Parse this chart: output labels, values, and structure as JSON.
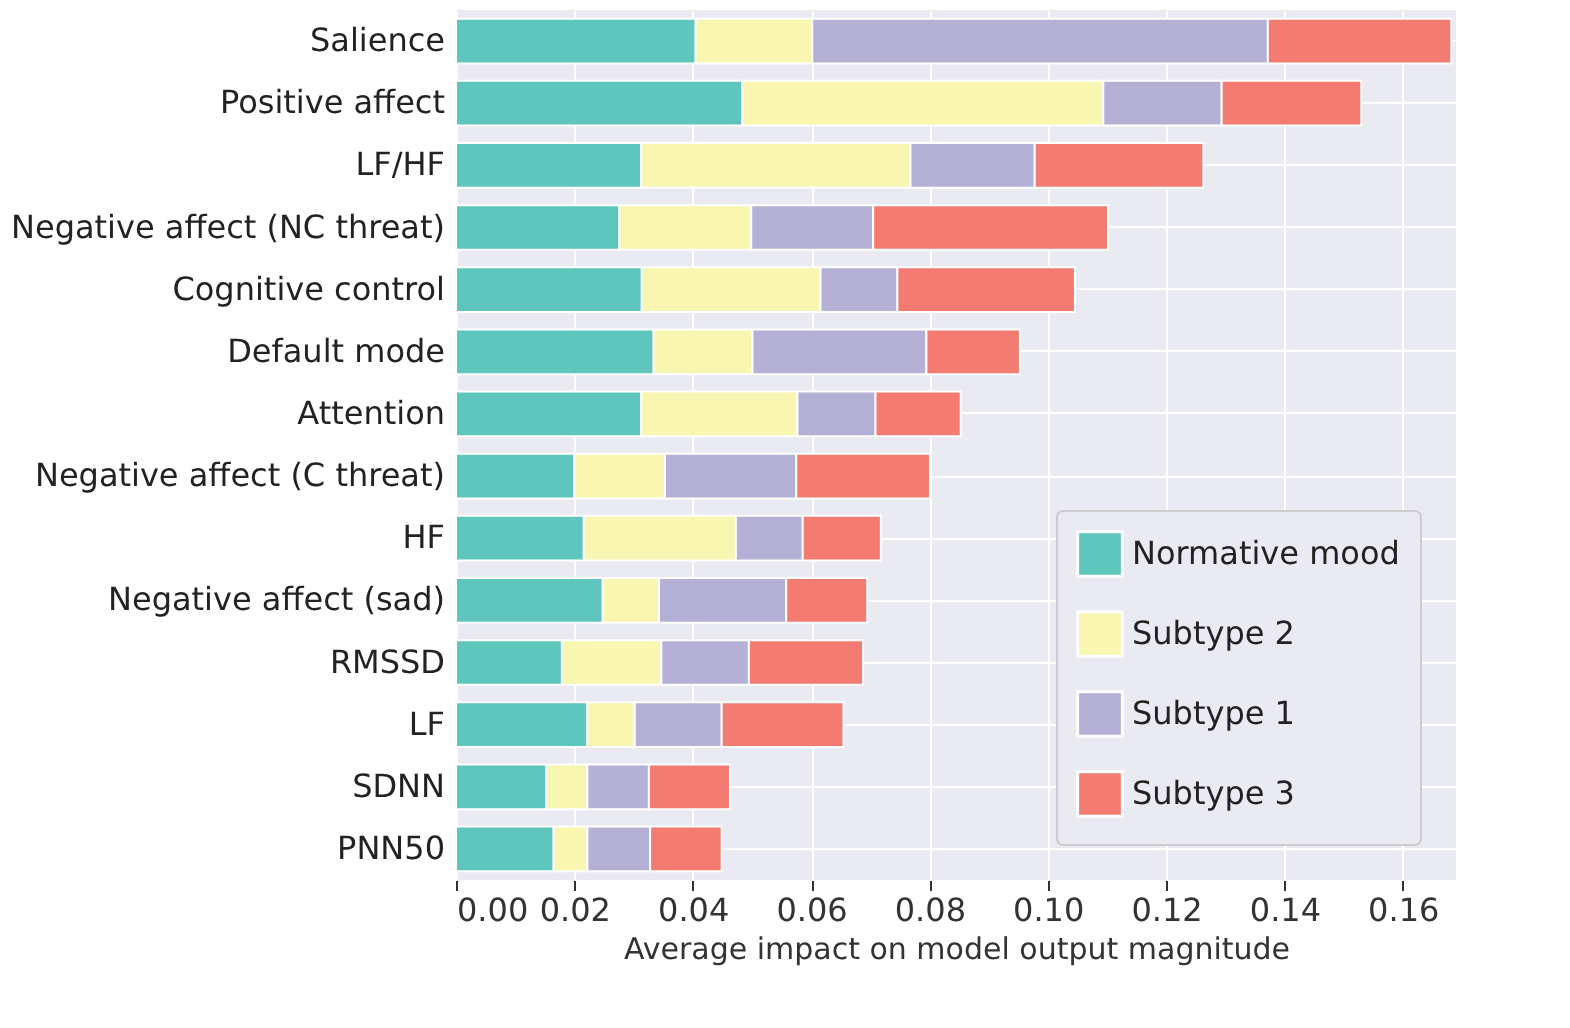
{
  "chart_data": {
    "type": "bar",
    "orientation": "horizontal",
    "stacked": true,
    "xlabel": "Average impact on model output magnitude",
    "categories": [
      "Salience",
      "Positive affect",
      "LF/HF",
      "Negative affect (NC threat)",
      "Cognitive control",
      "Default mode",
      "Attention",
      "Negative affect (C threat)",
      "HF",
      "Negative affect (sad)",
      "RMSSD",
      "LF",
      "SDNN",
      "PNN50"
    ],
    "series": [
      {
        "name": "Normative mood",
        "color": "#5fc6bd",
        "values": [
          0.0405,
          0.0484,
          0.0313,
          0.0276,
          0.0314,
          0.0334,
          0.0313,
          0.02,
          0.0216,
          0.0248,
          0.0179,
          0.0222,
          0.0153,
          0.0165
        ]
      },
      {
        "name": "Subtype 2",
        "color": "#f8f6b0",
        "values": [
          0.0197,
          0.061,
          0.0455,
          0.0223,
          0.0302,
          0.0167,
          0.0264,
          0.0153,
          0.0257,
          0.0095,
          0.0168,
          0.008,
          0.0069,
          0.0057
        ]
      },
      {
        "name": "Subtype 1",
        "color": "#b5b0d6",
        "values": [
          0.077,
          0.02,
          0.021,
          0.0206,
          0.013,
          0.0294,
          0.0132,
          0.0222,
          0.0113,
          0.0215,
          0.0148,
          0.0147,
          0.0104,
          0.0106
        ]
      },
      {
        "name": "Subtype 3",
        "color": "#f37b72",
        "values": [
          0.031,
          0.0236,
          0.0285,
          0.0397,
          0.03,
          0.0158,
          0.0144,
          0.0226,
          0.0132,
          0.0137,
          0.0193,
          0.0206,
          0.0137,
          0.0121
        ]
      }
    ],
    "xlim": [
      0,
      0.169
    ],
    "xticks": [
      {
        "value": 0,
        "label": "0.00"
      },
      {
        "value": 0.02,
        "label": "0.02"
      },
      {
        "value": 0.04,
        "label": "0.04"
      },
      {
        "value": 0.06,
        "label": "0.06"
      },
      {
        "value": 0.08,
        "label": "0.08"
      },
      {
        "value": 0.1,
        "label": "0.10"
      },
      {
        "value": 0.12,
        "label": "0.12"
      },
      {
        "value": 0.14,
        "label": "0.14"
      },
      {
        "value": 0.16,
        "label": "0.16"
      }
    ],
    "grid": true,
    "legend": "bottom right"
  }
}
